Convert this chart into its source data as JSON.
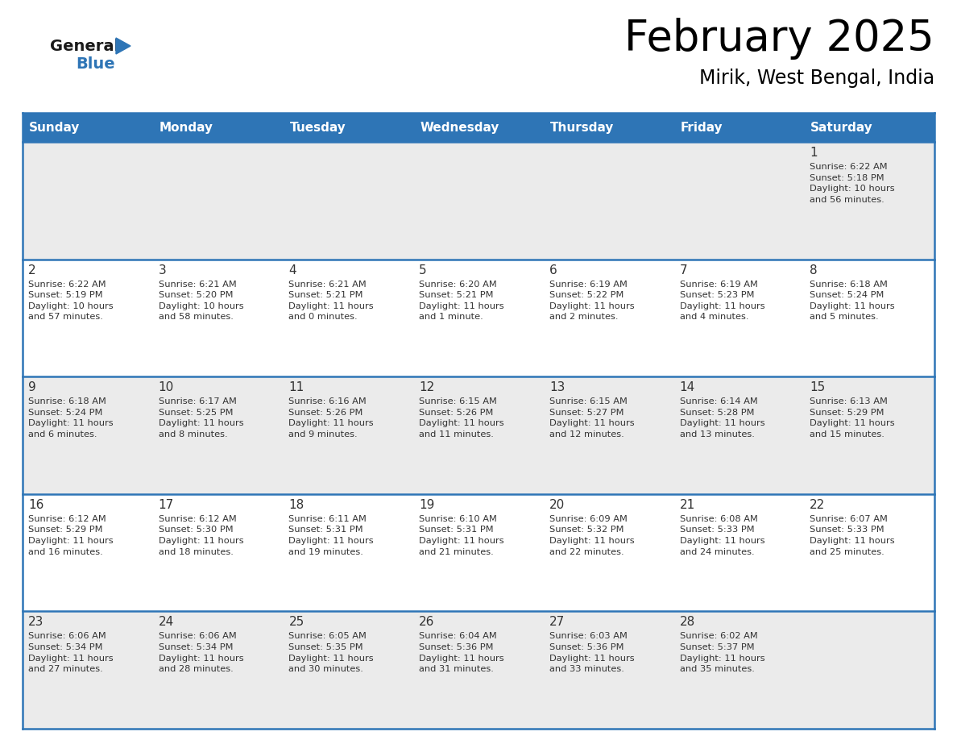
{
  "title": "February 2025",
  "subtitle": "Mirik, West Bengal, India",
  "header_bg": "#2E75B6",
  "header_text_color": "#FFFFFF",
  "cell_bg_odd": "#F0F4F8",
  "cell_bg_even": "#FFFFFF",
  "border_color": "#2E75B6",
  "row_line_color": "#5B9BD5",
  "text_color": "#333333",
  "days_of_week": [
    "Sunday",
    "Monday",
    "Tuesday",
    "Wednesday",
    "Thursday",
    "Friday",
    "Saturday"
  ],
  "calendar_data": [
    [
      null,
      null,
      null,
      null,
      null,
      null,
      {
        "day": 1,
        "sunrise": "6:22 AM",
        "sunset": "5:18 PM",
        "daylight": "10 hours\nand 56 minutes."
      }
    ],
    [
      {
        "day": 2,
        "sunrise": "6:22 AM",
        "sunset": "5:19 PM",
        "daylight": "10 hours\nand 57 minutes."
      },
      {
        "day": 3,
        "sunrise": "6:21 AM",
        "sunset": "5:20 PM",
        "daylight": "10 hours\nand 58 minutes."
      },
      {
        "day": 4,
        "sunrise": "6:21 AM",
        "sunset": "5:21 PM",
        "daylight": "11 hours\nand 0 minutes."
      },
      {
        "day": 5,
        "sunrise": "6:20 AM",
        "sunset": "5:21 PM",
        "daylight": "11 hours\nand 1 minute."
      },
      {
        "day": 6,
        "sunrise": "6:19 AM",
        "sunset": "5:22 PM",
        "daylight": "11 hours\nand 2 minutes."
      },
      {
        "day": 7,
        "sunrise": "6:19 AM",
        "sunset": "5:23 PM",
        "daylight": "11 hours\nand 4 minutes."
      },
      {
        "day": 8,
        "sunrise": "6:18 AM",
        "sunset": "5:24 PM",
        "daylight": "11 hours\nand 5 minutes."
      }
    ],
    [
      {
        "day": 9,
        "sunrise": "6:18 AM",
        "sunset": "5:24 PM",
        "daylight": "11 hours\nand 6 minutes."
      },
      {
        "day": 10,
        "sunrise": "6:17 AM",
        "sunset": "5:25 PM",
        "daylight": "11 hours\nand 8 minutes."
      },
      {
        "day": 11,
        "sunrise": "6:16 AM",
        "sunset": "5:26 PM",
        "daylight": "11 hours\nand 9 minutes."
      },
      {
        "day": 12,
        "sunrise": "6:15 AM",
        "sunset": "5:26 PM",
        "daylight": "11 hours\nand 11 minutes."
      },
      {
        "day": 13,
        "sunrise": "6:15 AM",
        "sunset": "5:27 PM",
        "daylight": "11 hours\nand 12 minutes."
      },
      {
        "day": 14,
        "sunrise": "6:14 AM",
        "sunset": "5:28 PM",
        "daylight": "11 hours\nand 13 minutes."
      },
      {
        "day": 15,
        "sunrise": "6:13 AM",
        "sunset": "5:29 PM",
        "daylight": "11 hours\nand 15 minutes."
      }
    ],
    [
      {
        "day": 16,
        "sunrise": "6:12 AM",
        "sunset": "5:29 PM",
        "daylight": "11 hours\nand 16 minutes."
      },
      {
        "day": 17,
        "sunrise": "6:12 AM",
        "sunset": "5:30 PM",
        "daylight": "11 hours\nand 18 minutes."
      },
      {
        "day": 18,
        "sunrise": "6:11 AM",
        "sunset": "5:31 PM",
        "daylight": "11 hours\nand 19 minutes."
      },
      {
        "day": 19,
        "sunrise": "6:10 AM",
        "sunset": "5:31 PM",
        "daylight": "11 hours\nand 21 minutes."
      },
      {
        "day": 20,
        "sunrise": "6:09 AM",
        "sunset": "5:32 PM",
        "daylight": "11 hours\nand 22 minutes."
      },
      {
        "day": 21,
        "sunrise": "6:08 AM",
        "sunset": "5:33 PM",
        "daylight": "11 hours\nand 24 minutes."
      },
      {
        "day": 22,
        "sunrise": "6:07 AM",
        "sunset": "5:33 PM",
        "daylight": "11 hours\nand 25 minutes."
      }
    ],
    [
      {
        "day": 23,
        "sunrise": "6:06 AM",
        "sunset": "5:34 PM",
        "daylight": "11 hours\nand 27 minutes."
      },
      {
        "day": 24,
        "sunrise": "6:06 AM",
        "sunset": "5:34 PM",
        "daylight": "11 hours\nand 28 minutes."
      },
      {
        "day": 25,
        "sunrise": "6:05 AM",
        "sunset": "5:35 PM",
        "daylight": "11 hours\nand 30 minutes."
      },
      {
        "day": 26,
        "sunrise": "6:04 AM",
        "sunset": "5:36 PM",
        "daylight": "11 hours\nand 31 minutes."
      },
      {
        "day": 27,
        "sunrise": "6:03 AM",
        "sunset": "5:36 PM",
        "daylight": "11 hours\nand 33 minutes."
      },
      {
        "day": 28,
        "sunrise": "6:02 AM",
        "sunset": "5:37 PM",
        "daylight": "11 hours\nand 35 minutes."
      },
      null
    ]
  ],
  "logo_general_color": "#1a1a1a",
  "logo_blue_color": "#2E75B6",
  "logo_triangle_color": "#2E75B6"
}
